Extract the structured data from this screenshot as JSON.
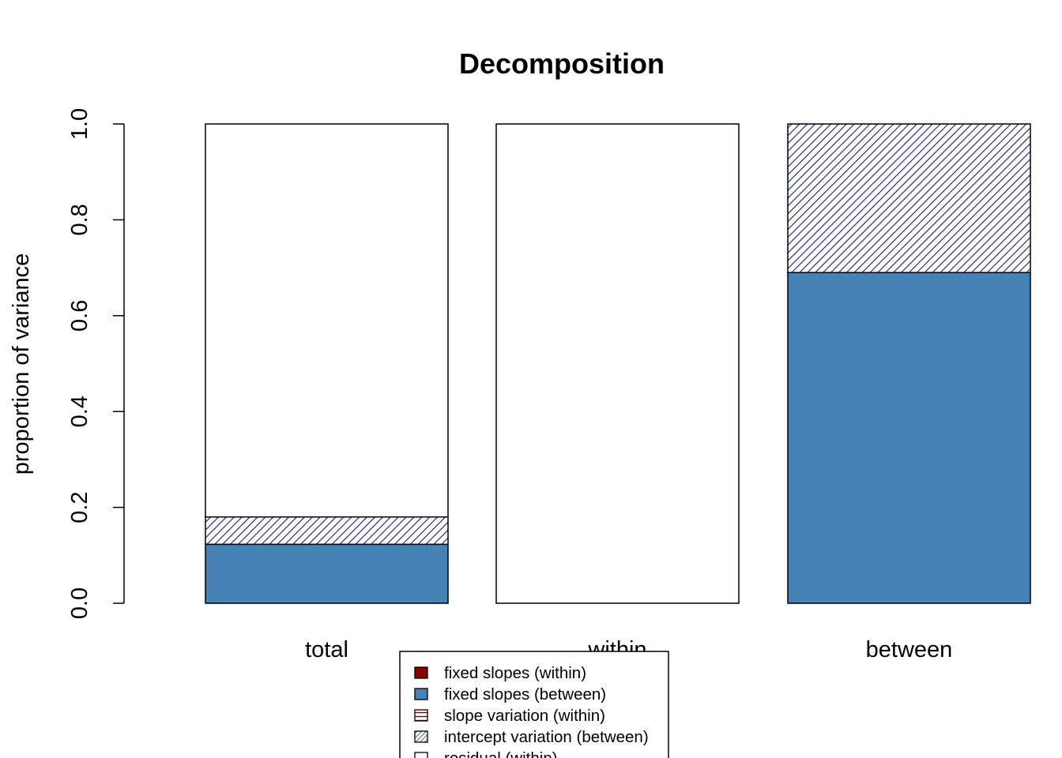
{
  "chart_data": {
    "type": "bar",
    "stacked": true,
    "title": "Decomposition",
    "xlabel": "",
    "ylabel": "proportion of variance",
    "ylim": [
      0,
      1
    ],
    "yticks": [
      "0.0",
      "0.2",
      "0.4",
      "0.6",
      "0.8",
      "1.0"
    ],
    "categories": [
      "total",
      "within",
      "between"
    ],
    "series": [
      {
        "name": "fixed slopes (within)",
        "values": [
          0,
          0,
          0
        ],
        "color": "#8b0000",
        "fill": "solid"
      },
      {
        "name": "fixed slopes (between)",
        "values": [
          0.123,
          0,
          0.69
        ],
        "color": "#4682b4",
        "fill": "solid"
      },
      {
        "name": "slope variation (within)",
        "values": [
          0,
          0,
          0
        ],
        "color": "#8b0000",
        "fill": "horizontal-lines"
      },
      {
        "name": "intercept variation (between)",
        "values": [
          0.057,
          0,
          0.31
        ],
        "color": "#191970",
        "fill": "diagonal-lines"
      },
      {
        "name": "residual (within)",
        "values": [
          0.82,
          1.0,
          0
        ],
        "color": "#ffffff",
        "fill": "solid"
      }
    ],
    "legend_position": "bottom-center",
    "grid": false
  }
}
